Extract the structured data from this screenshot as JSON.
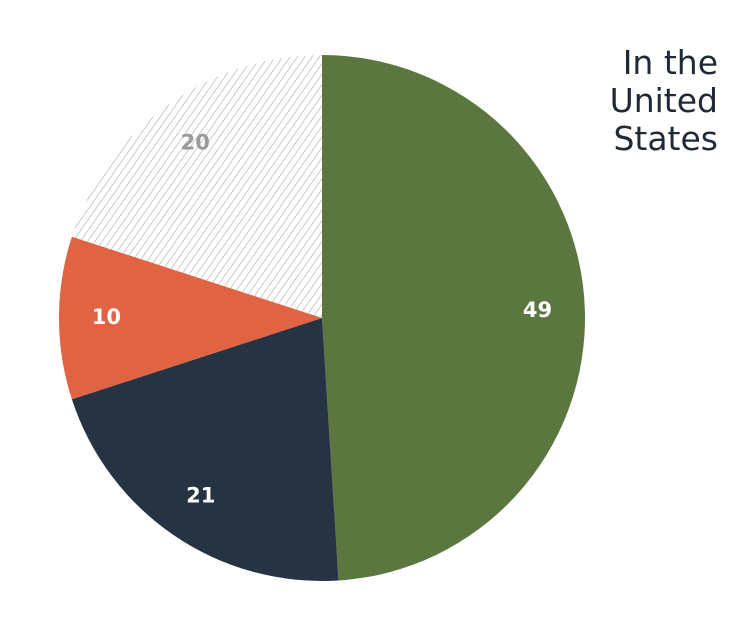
{
  "chart_data": {
    "type": "pie",
    "title": "In the United States",
    "values": [
      49,
      21,
      10,
      20
    ],
    "colors": [
      "#5b773f",
      "#263342",
      "#e06343",
      "#9a9a9a"
    ],
    "hatched": [
      false,
      false,
      false,
      true
    ]
  }
}
